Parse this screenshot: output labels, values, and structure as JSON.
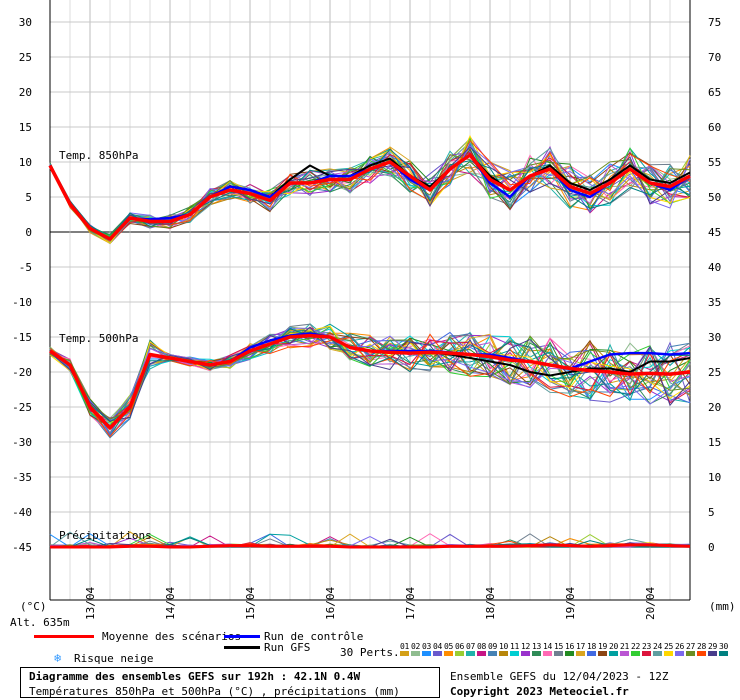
{
  "chart_data": {
    "type": "line",
    "title": "Diagramme des ensembles GEFS sur 192h : 42.1N 0.4W",
    "subtitle": "Températures 850hPa et 500hPa (°C) , précipitations (mm)",
    "run_label": "Ensemble GEFS du 12/04/2023 - 12Z",
    "copyright": "Copyright 2023 Meteociel.fr",
    "left_axis_unit": "(°C)",
    "right_axis_unit": "(mm)",
    "altitude": "Alt. 635m",
    "left_ticks": [
      30,
      25,
      20,
      15,
      10,
      5,
      0,
      -5,
      -10,
      -15,
      -20,
      -25,
      -30,
      -35,
      -40,
      -45
    ],
    "right_ticks": [
      75,
      70,
      65,
      60,
      55,
      50,
      45,
      40,
      35,
      30,
      25,
      20,
      15,
      10,
      5,
      0
    ],
    "ylim_temp": [
      -52,
      30
    ],
    "date_ticks": [
      "13/04",
      "14/04",
      "15/04",
      "16/04",
      "17/04",
      "18/04",
      "19/04",
      "20/04"
    ],
    "x_hours": [
      0,
      6,
      12,
      18,
      24,
      30,
      36,
      42,
      48,
      54,
      60,
      66,
      72,
      78,
      84,
      90,
      96,
      102,
      108,
      114,
      120,
      126,
      132,
      138,
      144,
      150,
      156,
      162,
      168,
      174,
      180,
      186,
      192
    ],
    "panel_labels": {
      "t850": "Temp. 850hPa",
      "t500": "Temp. 500hPa",
      "precip": "Précipitations"
    },
    "series": [
      {
        "name": "Moyenne des scénarios",
        "key": "t850_mean",
        "values": [
          9.5,
          4,
          0.5,
          -1,
          2,
          1.5,
          1.5,
          2.5,
          5,
          6,
          5.5,
          4.5,
          7,
          7,
          7.5,
          7.5,
          9,
          10,
          8,
          6,
          9,
          11,
          7.5,
          6,
          8,
          9,
          6.5,
          5.5,
          7,
          9,
          7,
          6.5,
          8
        ]
      },
      {
        "name": "Run de contrôle",
        "key": "t850_ctrl",
        "values": [
          9.5,
          4,
          0.5,
          -1,
          2,
          1.8,
          2,
          2.5,
          5,
          6.5,
          6,
          5,
          7,
          7,
          8,
          8,
          9,
          10,
          7.5,
          6,
          9,
          11,
          7,
          5,
          8,
          9,
          6,
          5,
          7,
          9,
          7,
          6,
          8
        ]
      },
      {
        "name": "Run GFS",
        "key": "t850_gfs",
        "values": [
          9.5,
          4,
          0.5,
          -1,
          2,
          1.5,
          1.5,
          2.5,
          5,
          6.5,
          6,
          5,
          7.5,
          9.5,
          8,
          8,
          9.5,
          10.5,
          8,
          6.5,
          9,
          11,
          8,
          6,
          8,
          9.5,
          7,
          6,
          7.5,
          9.5,
          7.5,
          7,
          8.5
        ]
      },
      {
        "name": "Moyenne des scénarios",
        "key": "t500_mean",
        "values": [
          -17,
          -19,
          -25,
          -28,
          -25,
          -17.5,
          -18,
          -18.5,
          -19,
          -18.5,
          -17,
          -16,
          -15,
          -14.8,
          -15,
          -16.5,
          -17,
          -17.2,
          -17.3,
          -17.2,
          -17.3,
          -17.5,
          -17.8,
          -18.3,
          -18.5,
          -19,
          -19.5,
          -19.8,
          -20,
          -20.3,
          -20.2,
          -20.3,
          -20
        ]
      },
      {
        "name": "Run de contrôle",
        "key": "t500_ctrl",
        "values": [
          -17,
          -19,
          -25,
          -28,
          -25,
          -17.5,
          -18,
          -18.5,
          -19,
          -18.5,
          -16.5,
          -15.5,
          -14.8,
          -14.5,
          -15,
          -16.5,
          -17,
          -17,
          -17,
          -17,
          -17.2,
          -17.5,
          -17.5,
          -18,
          -18.5,
          -19,
          -19.5,
          -18.5,
          -17.5,
          -17.3,
          -17.3,
          -17.5,
          -17.3
        ]
      },
      {
        "name": "Run GFS",
        "key": "t500_gfs",
        "values": [
          -17,
          -19,
          -25,
          -28,
          -25,
          -17.5,
          -18,
          -18.5,
          -19,
          -18.5,
          -17,
          -16,
          -15,
          -14.5,
          -15,
          -16.5,
          -17,
          -17.2,
          -17.2,
          -17.2,
          -17.5,
          -18,
          -18.5,
          -19,
          -20,
          -20.5,
          -20,
          -19.5,
          -19.5,
          -20,
          -18.5,
          -18.5,
          -18
        ]
      },
      {
        "name": "Moyenne des scénarios",
        "key": "precip_mean",
        "values": [
          0,
          0,
          0,
          0,
          0.1,
          0.1,
          0,
          0,
          0.1,
          0.2,
          0.2,
          0.1,
          0.1,
          0.1,
          0.1,
          0,
          0,
          0,
          0,
          0,
          0.1,
          0.1,
          0.1,
          0.1,
          0.2,
          0.3,
          0.2,
          0.1,
          0.2,
          0.3,
          0.3,
          0.2,
          0.1
        ]
      }
    ],
    "legend": {
      "mean": "Moyenne des scénarios",
      "ctrl": "Run de contrôle",
      "gfs": "Run GFS",
      "snow": "Risque neige",
      "perts": "30 Perts."
    },
    "perturbations": [
      "01",
      "02",
      "03",
      "04",
      "05",
      "06",
      "07",
      "08",
      "09",
      "10",
      "11",
      "12",
      "13",
      "14",
      "15",
      "16",
      "17",
      "18",
      "19",
      "20",
      "21",
      "22",
      "23",
      "24",
      "25",
      "26",
      "27",
      "28",
      "29",
      "30"
    ],
    "colors": {
      "mean": "#ff0000",
      "ctrl": "#0000ff",
      "gfs": "#000000",
      "grid": "#c8c8c8",
      "snow": "#3399ff",
      "members": [
        "#d4a017",
        "#8fbc8f",
        "#1e90ff",
        "#6a5acd",
        "#ff8c00",
        "#9acd32",
        "#20b2aa",
        "#c71585",
        "#4682b4",
        "#b8860b",
        "#00ced1",
        "#9932cc",
        "#2e8b57",
        "#ff69b4",
        "#708090",
        "#228b22",
        "#daa520",
        "#4169e1",
        "#8b4513",
        "#00a0a0",
        "#ba55d3",
        "#32cd32",
        "#dc143c",
        "#5f9ea0",
        "#ffd700",
        "#7b68ee",
        "#6b8e23",
        "#ff4500",
        "#483d8b",
        "#008080"
      ]
    }
  }
}
